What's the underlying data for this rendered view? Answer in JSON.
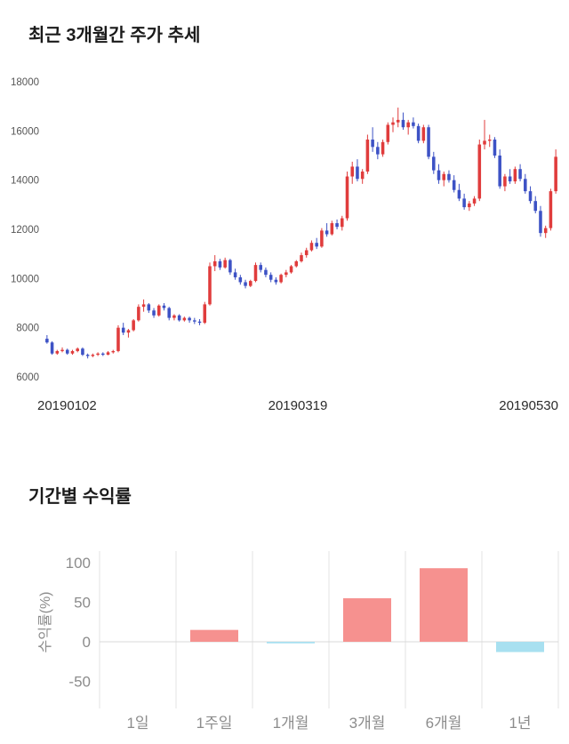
{
  "candle_section": {
    "title": "최근 3개월간 주가 추세"
  },
  "returns_section": {
    "title": "기간별 수익률"
  },
  "chart_data": [
    {
      "type": "candlestick",
      "title": "최근 3개월간 주가 추세",
      "ylim": [
        6000,
        18000
      ],
      "yticks": [
        6000,
        8000,
        10000,
        12000,
        14000,
        16000,
        18000
      ],
      "x_labels": [
        "20190102",
        "20190319",
        "20190530"
      ],
      "colors": {
        "up": "#e03c3c",
        "down": "#3d52c5"
      },
      "candles": [
        [
          7550,
          7700,
          7350,
          7400
        ],
        [
          7400,
          7450,
          6900,
          6950
        ],
        [
          6950,
          7100,
          6900,
          7050
        ],
        [
          7050,
          7200,
          7000,
          7100
        ],
        [
          7100,
          7150,
          6900,
          6950
        ],
        [
          6950,
          7100,
          6900,
          7050
        ],
        [
          7050,
          7200,
          7000,
          7150
        ],
        [
          7150,
          7200,
          6850,
          6900
        ],
        [
          6900,
          6950,
          6750,
          6850
        ],
        [
          6850,
          6950,
          6800,
          6900
        ],
        [
          6900,
          7000,
          6850,
          6950
        ],
        [
          6950,
          7000,
          6850,
          6900
        ],
        [
          6900,
          7050,
          6880,
          7000
        ],
        [
          7000,
          7100,
          6950,
          7050
        ],
        [
          7050,
          8100,
          7000,
          8000
        ],
        [
          8000,
          8200,
          7700,
          7800
        ],
        [
          7800,
          7950,
          7600,
          7900
        ],
        [
          7900,
          8350,
          7850,
          8300
        ],
        [
          8300,
          8950,
          8250,
          8850
        ],
        [
          8850,
          9150,
          8650,
          8950
        ],
        [
          8950,
          9000,
          8600,
          8700
        ],
        [
          8700,
          8800,
          8400,
          8500
        ],
        [
          8500,
          8950,
          8450,
          8900
        ],
        [
          8900,
          9000,
          8700,
          8800
        ],
        [
          8800,
          8850,
          8300,
          8400
        ],
        [
          8400,
          8550,
          8300,
          8500
        ],
        [
          8500,
          8550,
          8250,
          8300
        ],
        [
          8300,
          8450,
          8250,
          8400
        ],
        [
          8400,
          8450,
          8200,
          8300
        ],
        [
          8300,
          8400,
          8150,
          8250
        ],
        [
          8250,
          8350,
          8100,
          8200
        ],
        [
          8200,
          9050,
          8150,
          8950
        ],
        [
          8950,
          10650,
          8900,
          10500
        ],
        [
          10500,
          10950,
          10300,
          10700
        ],
        [
          10700,
          10800,
          10350,
          10450
        ],
        [
          10450,
          10850,
          10400,
          10750
        ],
        [
          10750,
          10800,
          10150,
          10250
        ],
        [
          10250,
          10400,
          9950,
          10050
        ],
        [
          10050,
          10150,
          9750,
          9850
        ],
        [
          9850,
          9950,
          9600,
          9700
        ],
        [
          9700,
          9950,
          9650,
          9900
        ],
        [
          9900,
          10650,
          9850,
          10550
        ],
        [
          10550,
          10650,
          10250,
          10350
        ],
        [
          10350,
          10450,
          10050,
          10150
        ],
        [
          10150,
          10250,
          9850,
          9950
        ],
        [
          9950,
          10050,
          9750,
          9850
        ],
        [
          9850,
          10200,
          9800,
          10150
        ],
        [
          10150,
          10350,
          10050,
          10250
        ],
        [
          10250,
          10550,
          10200,
          10500
        ],
        [
          10500,
          10750,
          10450,
          10700
        ],
        [
          10700,
          11050,
          10650,
          10950
        ],
        [
          10950,
          11250,
          10850,
          11150
        ],
        [
          11150,
          11550,
          11100,
          11450
        ],
        [
          11450,
          11650,
          11200,
          11300
        ],
        [
          11300,
          12050,
          11250,
          11950
        ],
        [
          11950,
          12250,
          11700,
          11800
        ],
        [
          11800,
          12350,
          11750,
          12250
        ],
        [
          12250,
          12400,
          12000,
          12100
        ],
        [
          12100,
          12550,
          11950,
          12450
        ],
        [
          12450,
          14350,
          12350,
          14150
        ],
        [
          14150,
          14750,
          13850,
          14550
        ],
        [
          14550,
          14850,
          13950,
          14050
        ],
        [
          14050,
          14450,
          13850,
          14350
        ],
        [
          14350,
          15850,
          14250,
          15650
        ],
        [
          15650,
          16150,
          15150,
          15350
        ],
        [
          15350,
          15550,
          14850,
          15050
        ],
        [
          15050,
          15650,
          14950,
          15550
        ],
        [
          15550,
          16350,
          15450,
          16250
        ],
        [
          16250,
          16550,
          15950,
          16350
        ],
        [
          16350,
          16950,
          16150,
          16450
        ],
        [
          16450,
          16750,
          16050,
          16150
        ],
        [
          16150,
          16450,
          15850,
          16350
        ],
        [
          16350,
          16550,
          16100,
          16200
        ],
        [
          16200,
          16300,
          15500,
          15600
        ],
        [
          15600,
          16250,
          15500,
          16150
        ],
        [
          16150,
          16250,
          14850,
          14950
        ],
        [
          14950,
          15150,
          14250,
          14400
        ],
        [
          14400,
          14650,
          13850,
          14000
        ],
        [
          14000,
          14350,
          13750,
          14250
        ],
        [
          14250,
          14400,
          13900,
          14000
        ],
        [
          14000,
          14200,
          13500,
          13600
        ],
        [
          13600,
          13850,
          13150,
          13250
        ],
        [
          13250,
          13450,
          12800,
          12900
        ],
        [
          12900,
          13150,
          12750,
          13050
        ],
        [
          13050,
          13350,
          12950,
          13250
        ],
        [
          13250,
          15650,
          13150,
          15450
        ],
        [
          15450,
          16450,
          15250,
          15600
        ],
        [
          15600,
          15850,
          15350,
          15650
        ],
        [
          15650,
          15750,
          14900,
          15000
        ],
        [
          15000,
          15250,
          13650,
          13750
        ],
        [
          13750,
          14250,
          13550,
          14150
        ],
        [
          14150,
          14450,
          13850,
          13950
        ],
        [
          13950,
          14550,
          13850,
          14450
        ],
        [
          14450,
          14650,
          13950,
          14050
        ],
        [
          14050,
          14250,
          13450,
          13550
        ],
        [
          13550,
          13750,
          13050,
          13150
        ],
        [
          13150,
          13350,
          12650,
          12750
        ],
        [
          12750,
          12950,
          11700,
          11850
        ],
        [
          11850,
          12150,
          11650,
          12050
        ],
        [
          12050,
          13650,
          11950,
          13550
        ],
        [
          13550,
          15250,
          13450,
          14950
        ]
      ]
    },
    {
      "type": "bar",
      "title": "기간별 수익률",
      "ylabel": "수익률(%)",
      "categories": [
        "1일",
        "1주일",
        "1개월",
        "3개월",
        "6개월",
        "1년"
      ],
      "values": [
        0,
        15,
        -2,
        55,
        93,
        -13
      ],
      "yticks": [
        100,
        50,
        0,
        -50
      ],
      "ylim": [
        -60,
        110
      ],
      "grid": "vertical-separators-and-zero-line",
      "legend": "none",
      "colors": {
        "positive": "#f6918f",
        "negative": "#a8e0f0"
      }
    }
  ]
}
